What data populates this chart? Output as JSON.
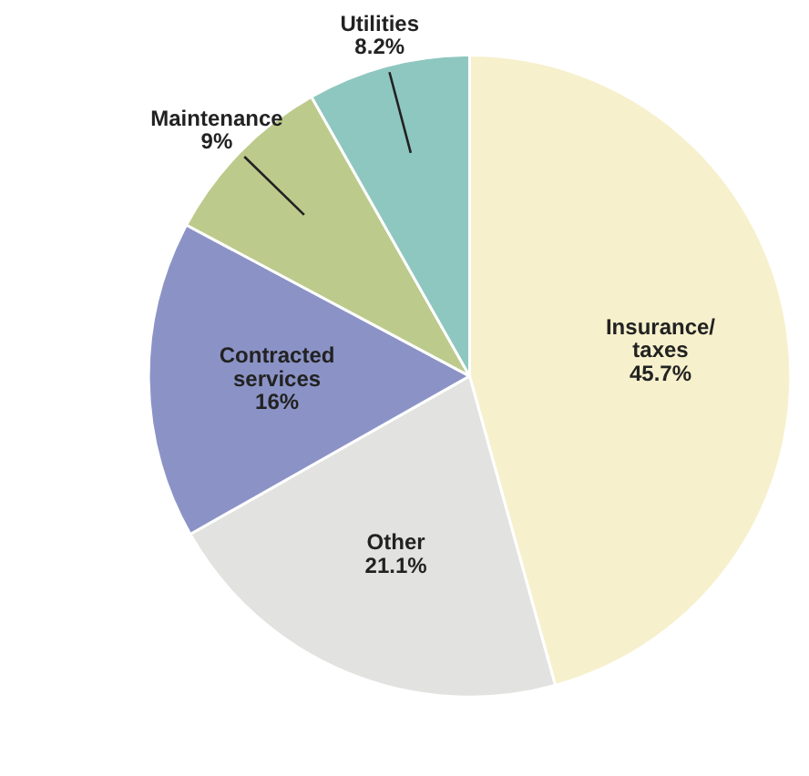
{
  "chart_data": {
    "type": "pie",
    "categories": [
      "Insurance/taxes",
      "Other",
      "Contracted services",
      "Maintenance",
      "Utilities"
    ],
    "values": [
      45.7,
      21.1,
      16,
      9,
      8.2
    ],
    "colors": [
      "#f6f0cc",
      "#e2e2e0",
      "#8b93c6",
      "#bccb8c",
      "#8ec7bf"
    ],
    "value_labels": [
      "45.7%",
      "21.1%",
      "16%",
      "9%",
      "8.2%"
    ]
  }
}
